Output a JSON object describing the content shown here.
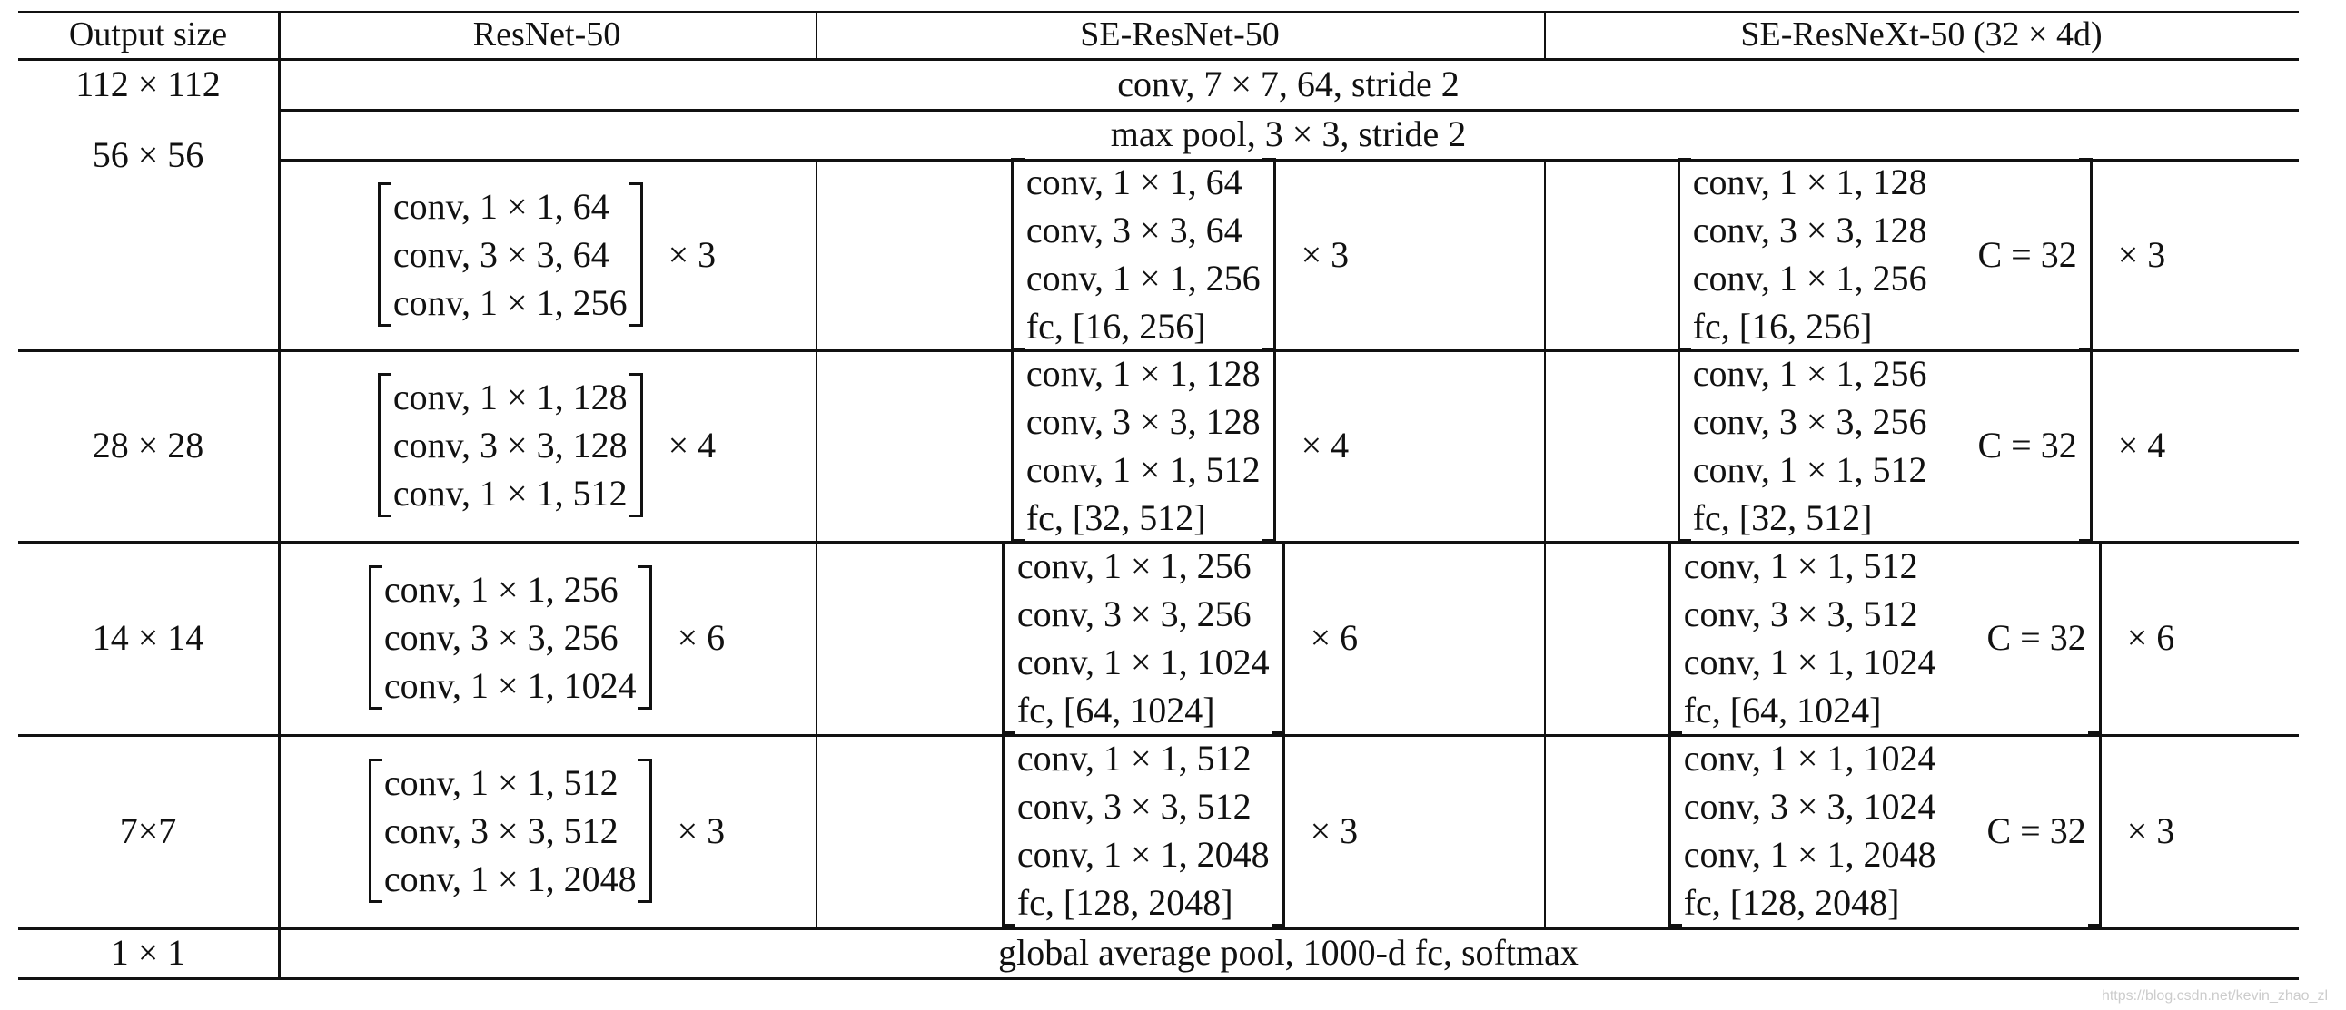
{
  "table": {
    "header": [
      "Output size",
      "ResNet-50",
      "SE-ResNet-50",
      "SE-ResNeXt-50 (32 × 4d)"
    ],
    "rows": [
      {
        "output_size": "112 × 112",
        "merged": "conv, 7 × 7, 64, stride 2"
      },
      {
        "output_size": "56 × 56",
        "merged": "max pool, 3 × 3, stride 2",
        "cells": [
          {
            "lines": [
              "conv, 1 × 1, 64",
              "conv, 3 × 3, 64",
              "conv, 1 × 1, 256"
            ],
            "repeat": "× 3"
          },
          {
            "lines": [
              "conv, 1 × 1, 64",
              "conv, 3 × 3, 64",
              "conv, 1 × 1, 256",
              "fc, [16, 256]"
            ],
            "repeat": "× 3"
          },
          {
            "lines": [
              "conv, 1 × 1, 128",
              "conv, 3 × 3, 128",
              "conv, 1 × 1, 256",
              "fc, [16, 256]"
            ],
            "note": "C = 32",
            "repeat": "× 3"
          }
        ]
      },
      {
        "output_size": "28 × 28",
        "cells": [
          {
            "lines": [
              "conv, 1 × 1, 128",
              "conv, 3 × 3, 128",
              "conv, 1 × 1, 512"
            ],
            "repeat": "× 4"
          },
          {
            "lines": [
              "conv, 1 × 1, 128",
              "conv, 3 × 3, 128",
              "conv, 1 × 1, 512",
              "fc, [32, 512]"
            ],
            "repeat": "× 4"
          },
          {
            "lines": [
              "conv, 1 × 1, 256",
              "conv, 3 × 3, 256",
              "conv, 1 × 1, 512",
              "fc, [32, 512]"
            ],
            "note": "C = 32",
            "repeat": "× 4"
          }
        ]
      },
      {
        "output_size": "14 × 14",
        "cells": [
          {
            "lines": [
              "conv, 1 × 1, 256",
              "conv, 3 × 3, 256",
              "conv, 1 × 1, 1024"
            ],
            "repeat": "× 6"
          },
          {
            "lines": [
              "conv, 1 × 1, 256",
              "conv, 3 × 3, 256",
              "conv, 1 × 1, 1024",
              "fc, [64, 1024]"
            ],
            "repeat": "× 6"
          },
          {
            "lines": [
              "conv, 1 × 1, 512",
              "conv, 3 × 3, 512",
              "conv, 1 × 1, 1024",
              "fc, [64, 1024]"
            ],
            "note": "C = 32",
            "repeat": "× 6"
          }
        ]
      },
      {
        "output_size": "7×7",
        "cells": [
          {
            "lines": [
              "conv, 1 × 1, 512",
              "conv, 3 × 3, 512",
              "conv, 1 × 1, 2048"
            ],
            "repeat": "× 3"
          },
          {
            "lines": [
              "conv, 1 × 1, 512",
              "conv, 3 × 3, 512",
              "conv, 1 × 1, 2048",
              "fc, [128, 2048]"
            ],
            "repeat": "× 3"
          },
          {
            "lines": [
              "conv, 1 × 1, 1024",
              "conv, 3 × 3, 1024",
              "conv, 1 × 1, 2048",
              "fc, [128, 2048]"
            ],
            "note": "C = 32",
            "repeat": "× 3"
          }
        ]
      },
      {
        "output_size": "1 × 1",
        "merged": "global average pool, 1000-d fc, softmax"
      }
    ]
  },
  "watermark": "https://blog.csdn.net/kevin_zhao_zl"
}
